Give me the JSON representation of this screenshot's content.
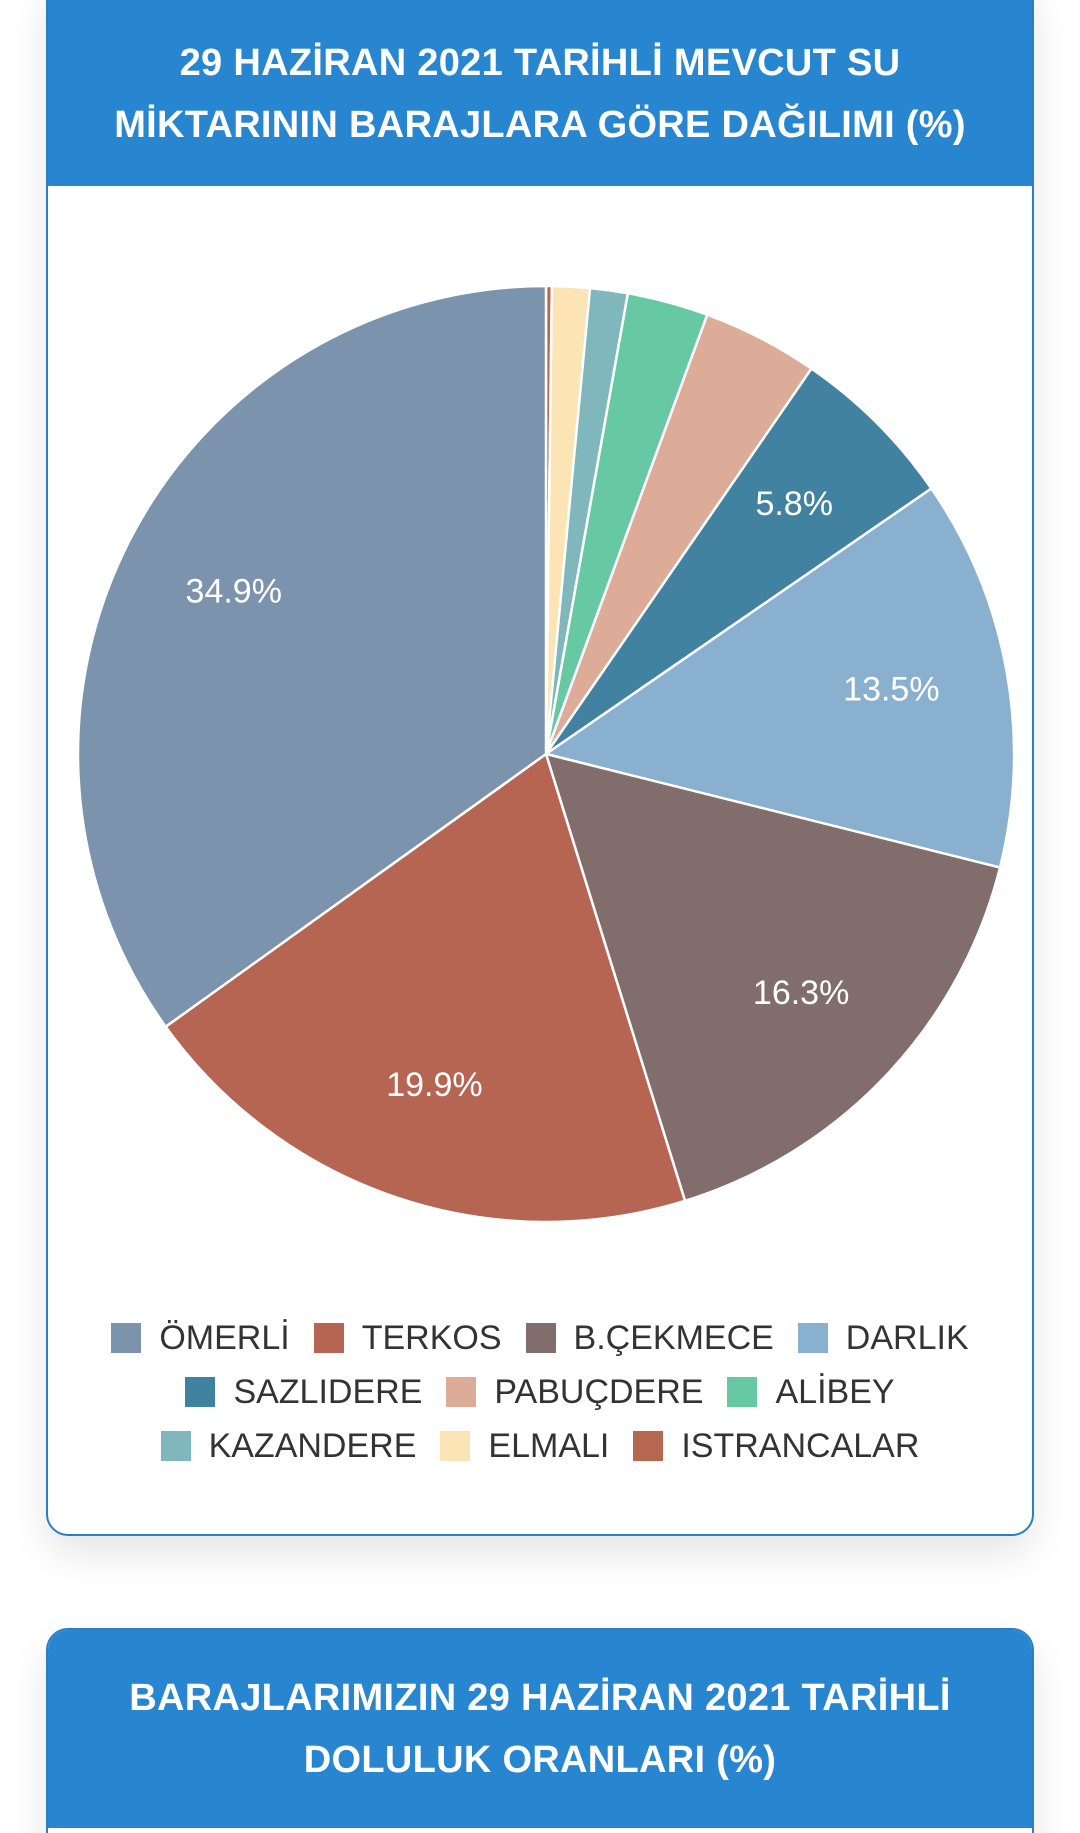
{
  "card1": {
    "title_line1": "29 HAZİRAN 2021 TARİHLİ MEVCUT SU",
    "title_line2": "MİKTARININ BARAJLARA GÖRE DAĞILIMI (%)"
  },
  "card2": {
    "title_line1": "BARAJLARIMIZIN 29 HAZİRAN 2021 TARİHLİ",
    "title_line2": "DOLULUK ORANLARI (%)"
  },
  "colors": {
    "header_bg": "#2886d0",
    "card_border": "#2a7fc3"
  },
  "chart_data": {
    "type": "pie",
    "title": "29 HAZİRAN 2021 TARİHLİ MEVCUT SU MİKTARININ BARAJLARA GÖRE DAĞILIMI (%)",
    "start": "12 o'clock, clockwise",
    "slices": [
      {
        "name": "ISTRANCALAR",
        "value": 0.2,
        "color": "#b5674f",
        "label": ""
      },
      {
        "name": "ELMALI",
        "value": 1.3,
        "color": "#fde4b4",
        "label": ""
      },
      {
        "name": "KAZANDERE",
        "value": 1.3,
        "color": "#7fb7bd",
        "label": ""
      },
      {
        "name": "ALİBEY",
        "value": 2.8,
        "color": "#66c9a4",
        "label": ""
      },
      {
        "name": "PABUÇDERE",
        "value": 4.0,
        "color": "#dcac98",
        "label": ""
      },
      {
        "name": "SAZLIDERE",
        "value": 5.8,
        "color": "#4282a1",
        "label": "5.8%"
      },
      {
        "name": "DARLIK",
        "value": 13.5,
        "color": "#89b1cf",
        "label": "13.5%"
      },
      {
        "name": "B.ÇEKMECE",
        "value": 16.3,
        "color": "#816d6b",
        "label": "16.3%"
      },
      {
        "name": "TERKOS",
        "value": 19.9,
        "color": "#b66553",
        "label": "19.9%"
      },
      {
        "name": "ÖMERLİ",
        "value": 34.9,
        "color": "#7b93ad",
        "label": "34.9%"
      }
    ],
    "legend": {
      "position": "bottom",
      "rows": [
        [
          {
            "name": "ÖMERLİ",
            "color": "#7b93ad"
          },
          {
            "name": "TERKOS",
            "color": "#b66553"
          },
          {
            "name": "B.ÇEKMECE",
            "color": "#816d6b"
          },
          {
            "name": "DARLIK",
            "color": "#89b1cf"
          }
        ],
        [
          {
            "name": "SAZLIDERE",
            "color": "#4282a1"
          },
          {
            "name": "PABUÇDERE",
            "color": "#dcac98"
          },
          {
            "name": "ALİBEY",
            "color": "#66c9a4"
          }
        ],
        [
          {
            "name": "KAZANDERE",
            "color": "#7fb7bd"
          },
          {
            "name": "ELMALI",
            "color": "#fde4b4"
          },
          {
            "name": "ISTRANCALAR",
            "color": "#b5674f"
          }
        ]
      ]
    }
  }
}
